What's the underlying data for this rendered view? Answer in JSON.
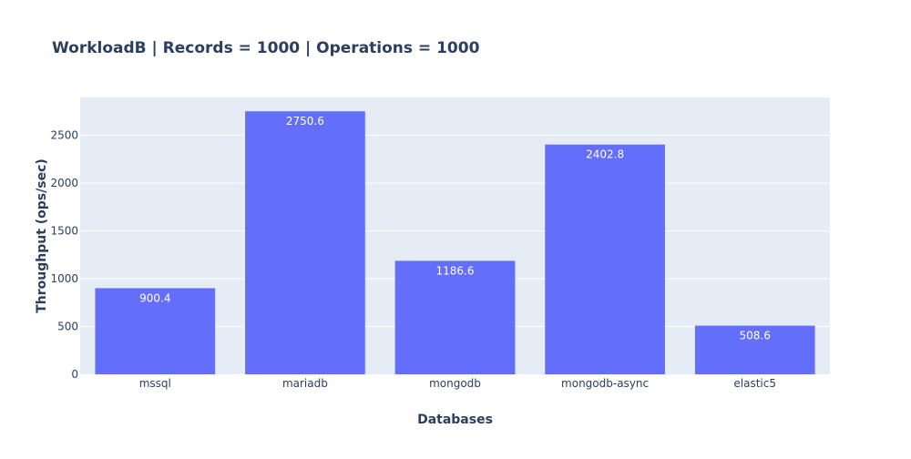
{
  "chart_data": {
    "type": "bar",
    "title": "WorkloadB | Records = 1000 | Operations = 1000",
    "xlabel": "Databases",
    "ylabel": "Throughput (ops/sec)",
    "categories": [
      "mssql",
      "mariadb",
      "mongodb",
      "mongodb-async",
      "elastic5"
    ],
    "values": [
      900.4,
      2750.6,
      1186.6,
      2402.8,
      508.6
    ],
    "data_labels": [
      "900.4",
      "2750.6",
      "1186.6",
      "2402.8",
      "508.6"
    ],
    "ylim": [
      0,
      2895.4
    ],
    "yticks": [
      0,
      500,
      1000,
      1500,
      2000,
      2500
    ],
    "ytick_labels": [
      "0",
      "500",
      "1000",
      "1500",
      "2000",
      "2500"
    ],
    "grid": true,
    "legend": "none",
    "colors": {
      "bar": "#636efa",
      "plot_background": "#e5ecf6",
      "gridline": "#ffffff",
      "title": "#2a3f5f",
      "tick_text": "#2a3f5f",
      "data_label": "#ffffff"
    }
  }
}
